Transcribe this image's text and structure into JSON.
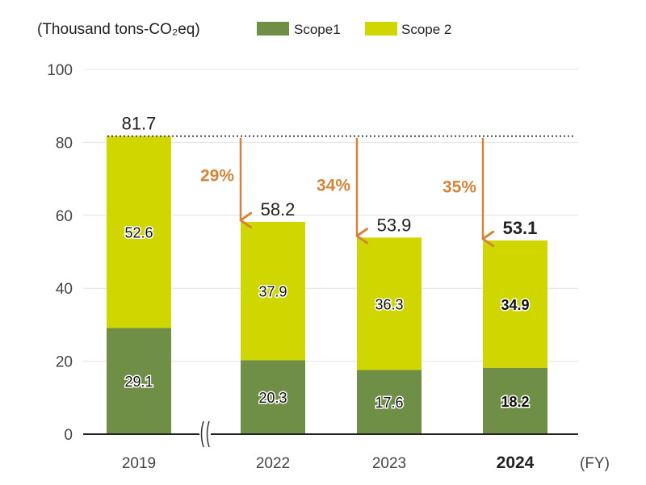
{
  "chart_data": {
    "type": "bar",
    "stacked": true,
    "unit_label": "(Thousand tons-CO₂eq)",
    "x_unit": "(FY)",
    "categories": [
      "2019",
      "2022",
      "2023",
      "2024"
    ],
    "series": [
      {
        "name": "Scope1",
        "color": "#6f8f47",
        "values": [
          29.1,
          20.3,
          17.6,
          18.2
        ]
      },
      {
        "name": "Scope 2",
        "color": "#cfd600",
        "values": [
          52.6,
          37.9,
          36.3,
          34.9
        ]
      }
    ],
    "totals": [
      "81.7",
      "58.2",
      "53.9",
      "53.1"
    ],
    "reductions": [
      "29%",
      "34%",
      "35%"
    ],
    "highlight_category": "2024",
    "ylim": [
      0,
      100
    ],
    "yticks": [
      "0",
      "20",
      "40",
      "60",
      "80",
      "100"
    ],
    "baseline_value": 81.7,
    "axis_break": true,
    "legend_position": "top",
    "grid": true
  }
}
